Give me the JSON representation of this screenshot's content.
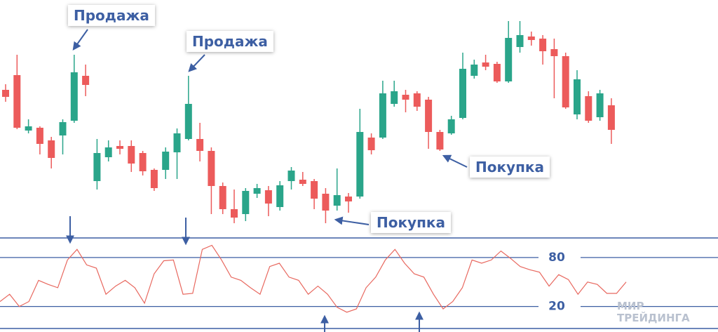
{
  "chart_data": [
    {
      "type": "candlestick",
      "up_color": "#2aa58a",
      "down_color": "#ec5b5b",
      "ylim": [
        0,
        340
      ],
      "open": [
        212,
        233,
        154,
        158,
        140,
        147,
        168,
        232,
        82,
        116,
        132,
        132,
        122,
        98,
        98,
        123,
        142,
        142,
        125,
        75,
        42,
        35,
        64,
        69,
        45,
        82,
        84,
        82,
        64,
        47,
        60,
        60,
        144,
        144,
        192,
        205,
        207,
        198,
        152,
        150,
        172,
        232,
        251,
        249,
        224,
        273,
        288,
        285,
        270,
        260,
        177,
        203,
        173,
        190
      ],
      "high": [
        220,
        262,
        170,
        160,
        145,
        170,
        262,
        248,
        142,
        140,
        140,
        140,
        125,
        100,
        130,
        157,
        232,
        165,
        130,
        80,
        70,
        72,
        78,
        75,
        82,
        102,
        95,
        85,
        72,
        100,
        65,
        185,
        150,
        225,
        225,
        212,
        210,
        202,
        155,
        175,
        265,
        255,
        262,
        252,
        310,
        310,
        295,
        290,
        285,
        265,
        240,
        210,
        212,
        200
      ],
      "low": [
        195,
        156,
        150,
        120,
        100,
        120,
        165,
        203,
        70,
        110,
        120,
        95,
        90,
        68,
        85,
        85,
        140,
        110,
        35,
        35,
        22,
        25,
        58,
        32,
        40,
        70,
        75,
        42,
        22,
        40,
        37,
        57,
        120,
        142,
        188,
        180,
        182,
        128,
        125,
        148,
        170,
        228,
        240,
        222,
        222,
        265,
        275,
        248,
        200,
        185,
        170,
        165,
        168,
        135
      ],
      "close": [
        202,
        158,
        160,
        135,
        115,
        166,
        237,
        219,
        122,
        130,
        128,
        107,
        96,
        72,
        124,
        150,
        192,
        125,
        75,
        42,
        30,
        68,
        72,
        50,
        76,
        97,
        78,
        57,
        40,
        62,
        53,
        152,
        126,
        207,
        210,
        198,
        188,
        152,
        127,
        170,
        242,
        248,
        245,
        224,
        286,
        290,
        283,
        267,
        260,
        187,
        227,
        168,
        207,
        155
      ],
      "annotations": [
        "Продажа",
        "Продажа",
        "Покупка",
        "Покупка"
      ]
    },
    {
      "type": "line",
      "color": "#e8685f",
      "ylim": [
        -7,
        104
      ],
      "yticks": [
        20,
        80
      ],
      "values": [
        26,
        35,
        20,
        26,
        52,
        47,
        43,
        77,
        90,
        71,
        67,
        35,
        45,
        52,
        43,
        24,
        60,
        76,
        77,
        35,
        36,
        90,
        95,
        77,
        56,
        52,
        43,
        35,
        69,
        73,
        56,
        52,
        35,
        45,
        35,
        19,
        13,
        17,
        43,
        56,
        77,
        90,
        73,
        60,
        56,
        35,
        17,
        26,
        43,
        77,
        73,
        77,
        88,
        79,
        69,
        65,
        62,
        45,
        59,
        53,
        35,
        50,
        47,
        36,
        36,
        50
      ]
    }
  ],
  "watermark": {
    "lines": [
      "МИР",
      "ТРЕЙДИНГА"
    ]
  }
}
